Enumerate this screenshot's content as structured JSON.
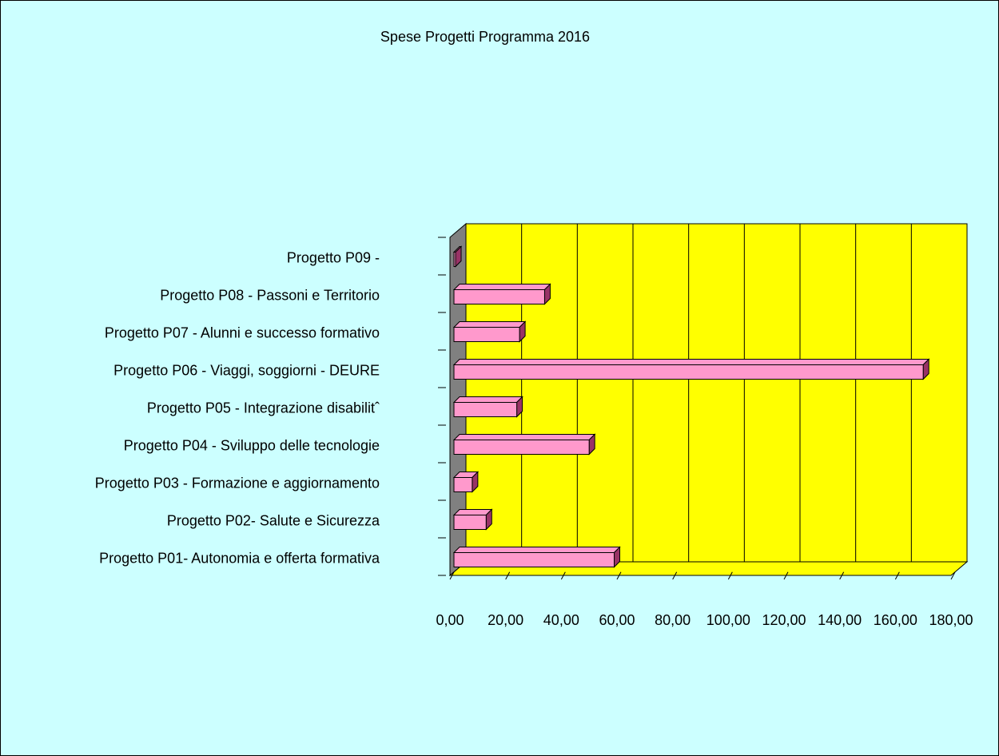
{
  "chart_data": {
    "type": "bar3d_horizontal",
    "title": "Spese Progetti Programma 2016",
    "categories": [
      "Progetto P01- Autonomia e offerta formativa",
      "Progetto P02- Salute e Sicurezza",
      "Progetto P03 - Formazione e aggiornamento",
      "Progetto P04 - Sviluppo delle tecnologie",
      "Progetto P05 - Integrazione disabilitˆ",
      "Progetto P06 - Viaggi, soggiorni - DEURE",
      "Progetto P07 - Alunni e successo formativo",
      "Progetto P08 - Passoni e Territorio",
      "Progetto P09 -"
    ],
    "values": [
      59,
      13,
      8,
      50,
      24,
      170,
      25,
      34,
      1
    ],
    "color": "#ff99cc",
    "side_color": "#993366",
    "wall_color": "#ffff00",
    "grid": true,
    "xlim": [
      0,
      180
    ],
    "xticks": [
      {
        "value": 0,
        "label": "0,00"
      },
      {
        "value": 20,
        "label": "20,00"
      },
      {
        "value": 40,
        "label": "40,00"
      },
      {
        "value": 60,
        "label": "60,00"
      },
      {
        "value": 80,
        "label": "80,00"
      },
      {
        "value": 100,
        "label": "100,00"
      },
      {
        "value": 120,
        "label": "120,00"
      },
      {
        "value": 140,
        "label": "140,00"
      },
      {
        "value": 160,
        "label": "160,00"
      },
      {
        "value": 180,
        "label": "180,00"
      }
    ]
  }
}
